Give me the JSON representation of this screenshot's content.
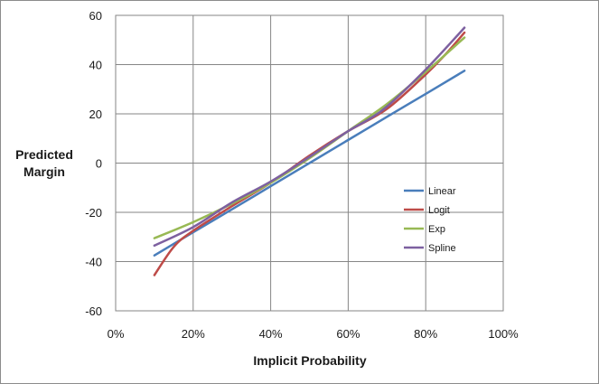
{
  "chart_data": {
    "type": "line",
    "xlabel": "Implicit Probability",
    "ylabel": [
      "Predicted",
      "Margin"
    ],
    "xlim": [
      0,
      1
    ],
    "ylim": [
      -60,
      60
    ],
    "x_ticks": [
      0,
      0.2,
      0.4,
      0.6,
      0.8,
      1.0
    ],
    "x_tick_labels": [
      "0%",
      "20%",
      "40%",
      "60%",
      "80%",
      "100%"
    ],
    "y_ticks": [
      60,
      40,
      20,
      0,
      -20,
      -40,
      -60
    ],
    "y_tick_labels": [
      "60",
      "40",
      "20",
      "0",
      "-20",
      "-40",
      "-60"
    ],
    "grid": true,
    "legend_position": "right",
    "series": [
      {
        "name": "Linear",
        "color": "#4a7ebb",
        "x": [
          0.1,
          0.2,
          0.3,
          0.4,
          0.5,
          0.6,
          0.7,
          0.8,
          0.9
        ],
        "y": [
          -37.5,
          -28.1,
          -18.8,
          -9.4,
          0.0,
          9.4,
          18.8,
          28.1,
          37.5
        ]
      },
      {
        "name": "Logit",
        "color": "#be4b48",
        "x": [
          0.1,
          0.15,
          0.2,
          0.3,
          0.4,
          0.5,
          0.6,
          0.7,
          0.8,
          0.85,
          0.9
        ],
        "y": [
          -45.5,
          -34,
          -27.5,
          -17.5,
          -8,
          3,
          13,
          22,
          36,
          44,
          53
        ]
      },
      {
        "name": "Exp",
        "color": "#98b954",
        "x": [
          0.1,
          0.2,
          0.3,
          0.4,
          0.5,
          0.6,
          0.7,
          0.8,
          0.9
        ],
        "y": [
          -30.5,
          -24,
          -16.5,
          -8,
          2,
          13,
          24,
          37,
          51
        ]
      },
      {
        "name": "Spline",
        "color": "#7d60a0",
        "x": [
          0.1,
          0.2,
          0.3,
          0.4,
          0.5,
          0.6,
          0.65,
          0.7,
          0.8,
          0.9
        ],
        "y": [
          -33.5,
          -26,
          -16,
          -7.5,
          2.5,
          13,
          17.5,
          23,
          38,
          55
        ]
      }
    ]
  }
}
